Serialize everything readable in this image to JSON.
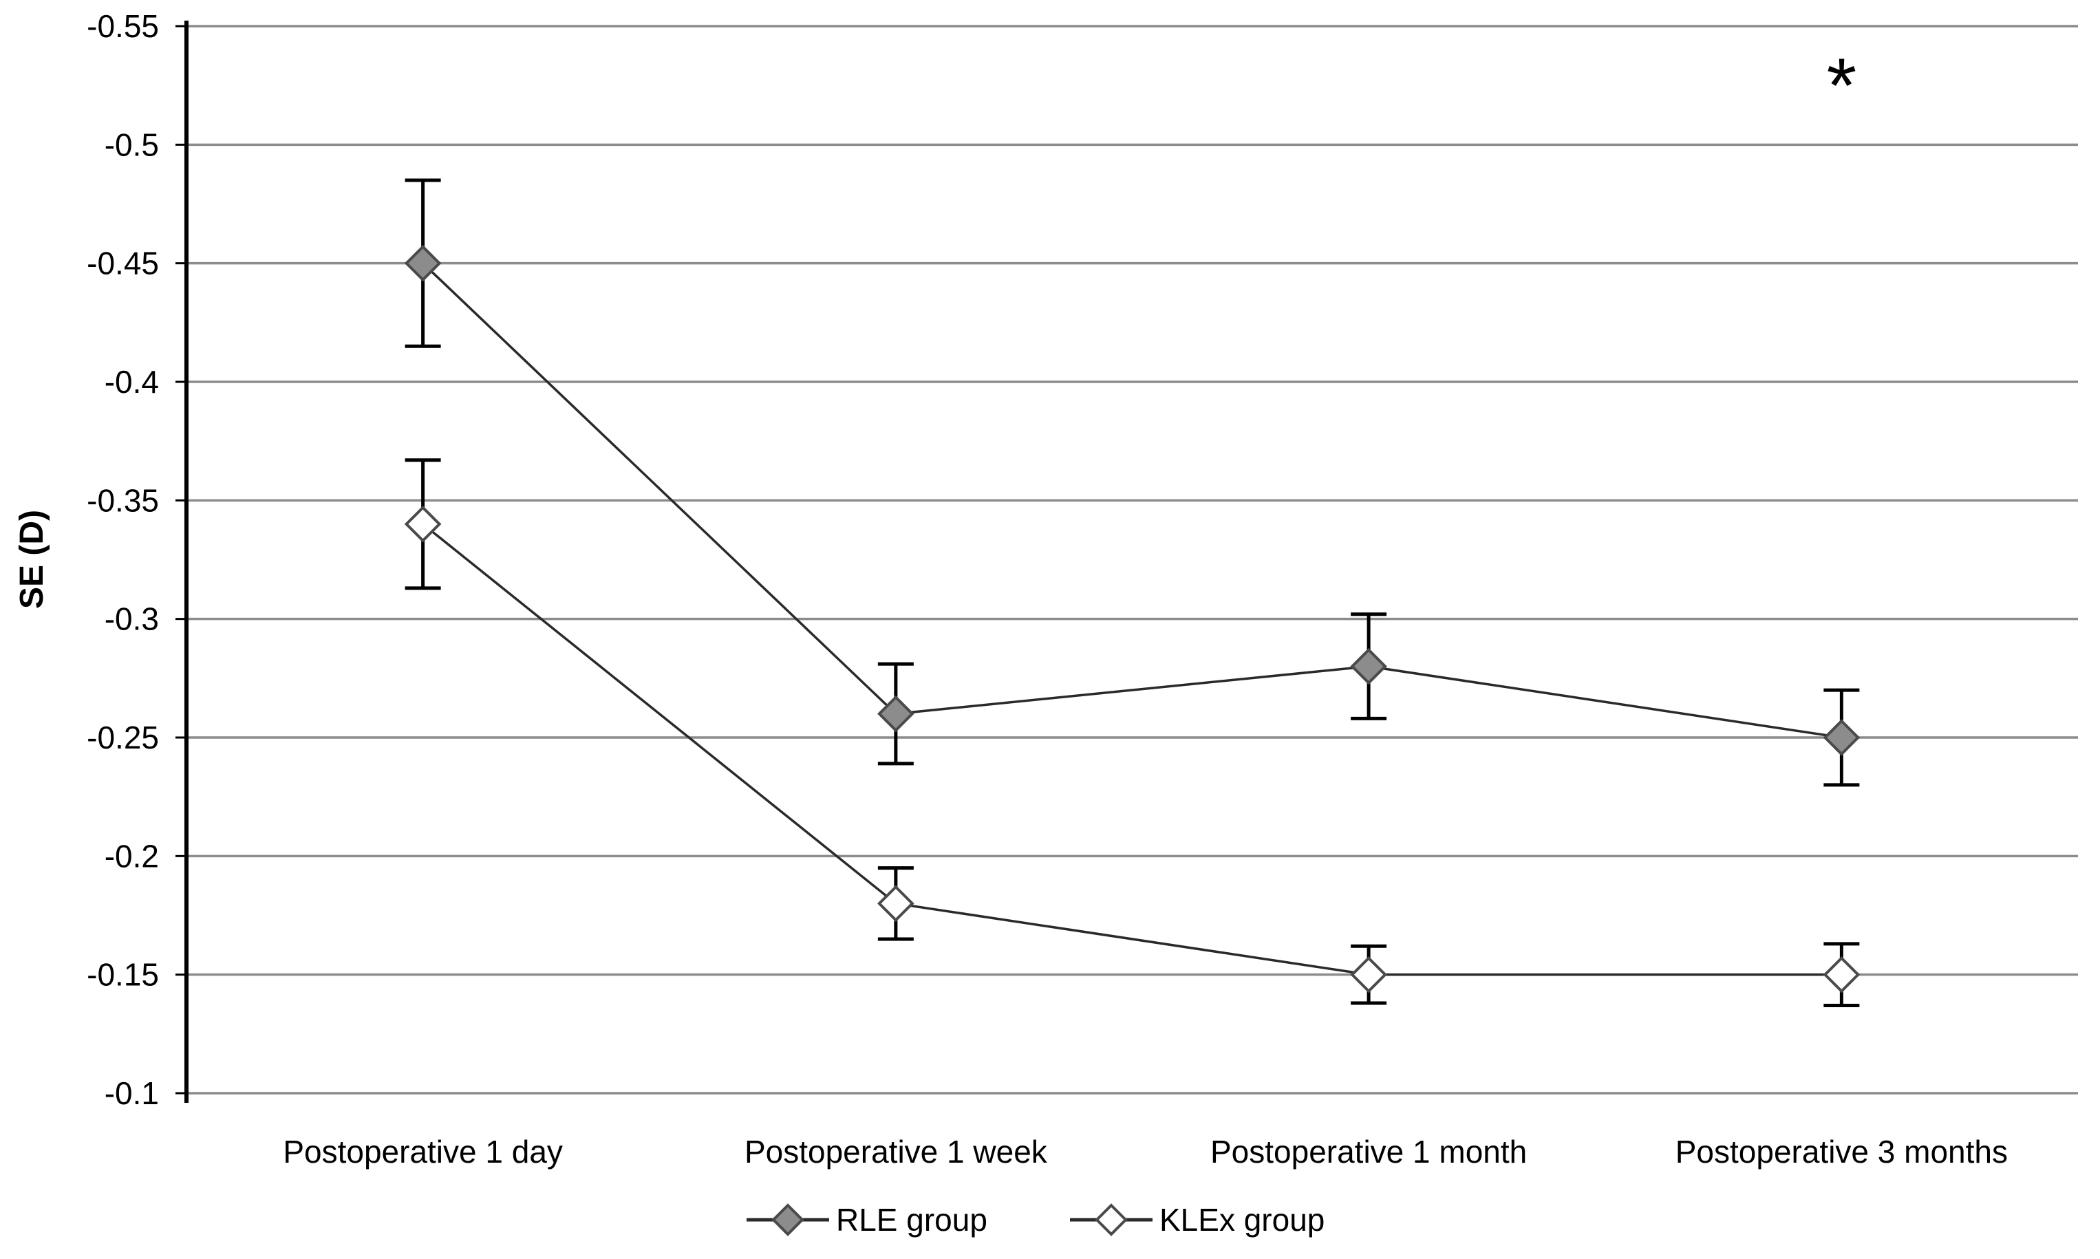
{
  "figure": {
    "background": "#ffffff"
  },
  "chart_data": {
    "type": "line",
    "title": "",
    "ylabel": "SE (D)",
    "xlabel": "",
    "grid": true,
    "legend_position": "bottom",
    "categories": [
      "Postoperative 1 day",
      "Postoperative 1 week",
      "Postoperative 1 month",
      "Postoperative 3 months"
    ],
    "y_axis": {
      "top_value": -0.55,
      "bottom_value": -0.1,
      "tick_values": [
        -0.55,
        -0.5,
        -0.45,
        -0.4,
        -0.35,
        -0.3,
        -0.25,
        -0.2,
        -0.15,
        -0.1
      ],
      "tick_labels": [
        "-0.55",
        "-0.5",
        "-0.45",
        "-0.4",
        "-0.35",
        "-0.3",
        "-0.25",
        "-0.2",
        "-0.15",
        "-0.1"
      ]
    },
    "series": [
      {
        "name": "RLE group",
        "marker": "filled-diamond",
        "marker_fill": "#8c8c8c",
        "marker_stroke": "#4a4a4a",
        "line_color": "#2a2a2a",
        "values": [
          -0.45,
          -0.26,
          -0.28,
          -0.25
        ],
        "errors": [
          0.035,
          0.021,
          0.022,
          0.02
        ]
      },
      {
        "name": "KLEx group",
        "marker": "open-diamond",
        "marker_fill": "#ffffff",
        "marker_stroke": "#4a4a4a",
        "line_color": "#2a2a2a",
        "values": [
          -0.34,
          -0.18,
          -0.15,
          -0.15
        ],
        "errors": [
          0.027,
          0.015,
          0.012,
          0.013
        ]
      }
    ],
    "annotation": {
      "text": "*",
      "category": "Postoperative 3 months",
      "category_index": 3,
      "position_value": -0.53
    },
    "colors": {
      "grid": "#8c8c8c",
      "axis": "#000000",
      "error_bar": "#000000",
      "text": "#000000"
    }
  }
}
